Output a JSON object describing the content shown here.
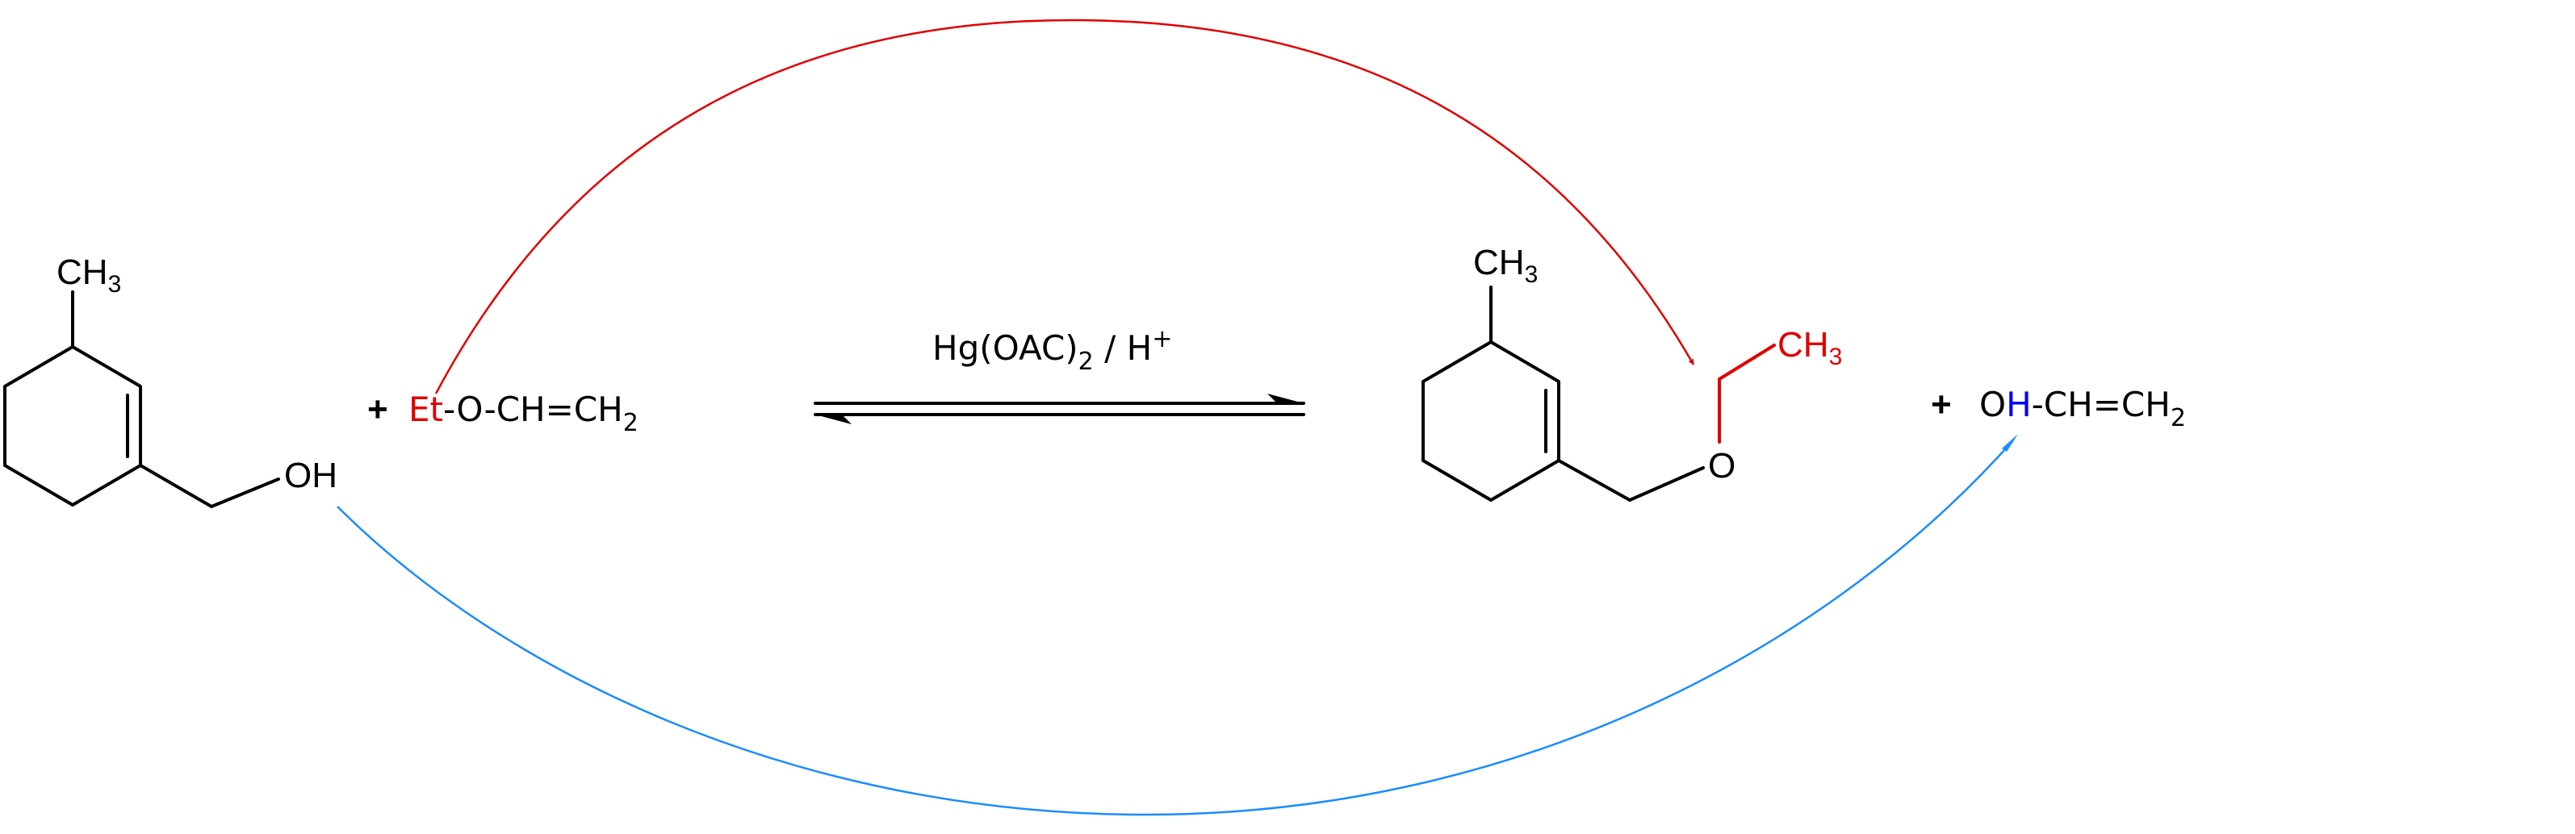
{
  "colors": {
    "black": "#000000",
    "red": "#e00000",
    "blue": "#1a8cff",
    "h_blue": "#0000ff"
  },
  "reactant1": {
    "methyl": "CH",
    "methyl_sub": "3",
    "hydroxyl": "OH"
  },
  "reactant2": {
    "plus": "+",
    "ethyl": "Et",
    "rest": "-O-CH=CH",
    "rest_sub": "2"
  },
  "conditions": {
    "reagent": "Hg(OAC)",
    "reagent_sub": "2",
    "separator": " / H",
    "acid_sup": "+"
  },
  "product1": {
    "methyl": "CH",
    "methyl_sub": "3",
    "oxygen": "O",
    "ethyl": "CH",
    "ethyl_sub": "3"
  },
  "product2": {
    "plus": "+",
    "o": "O",
    "h": "H",
    "rest": "-CH=CH",
    "rest_sub": "2"
  }
}
